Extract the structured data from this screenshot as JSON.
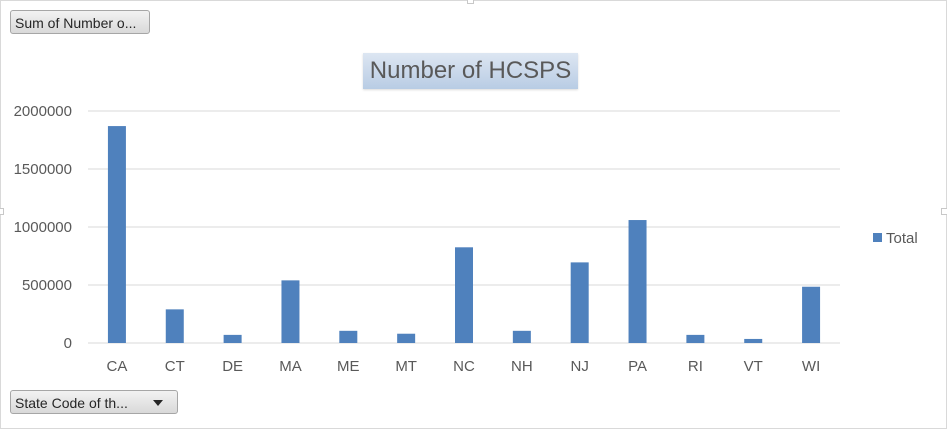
{
  "values_field_button": {
    "label": "Sum of Number o..."
  },
  "axis_field_button": {
    "label": "State Code of th..."
  },
  "colors": {
    "bar": "#4f81bd",
    "gridline": "#d9d9d9",
    "text": "#595959"
  },
  "chart_data": {
    "type": "bar",
    "title": "Number of HCSPS",
    "categories": [
      "CA",
      "CT",
      "DE",
      "MA",
      "ME",
      "MT",
      "NC",
      "NH",
      "NJ",
      "PA",
      "RI",
      "VT",
      "WI"
    ],
    "series": [
      {
        "name": "Total",
        "values": [
          1870000,
          290000,
          70000,
          540000,
          105000,
          80000,
          825000,
          105000,
          695000,
          1060000,
          70000,
          35000,
          485000
        ]
      }
    ],
    "yticks": [
      "0",
      "500000",
      "1000000",
      "1500000",
      "2000000"
    ],
    "ylim": [
      0,
      2000000
    ],
    "grid": true,
    "legend_position": "right"
  }
}
